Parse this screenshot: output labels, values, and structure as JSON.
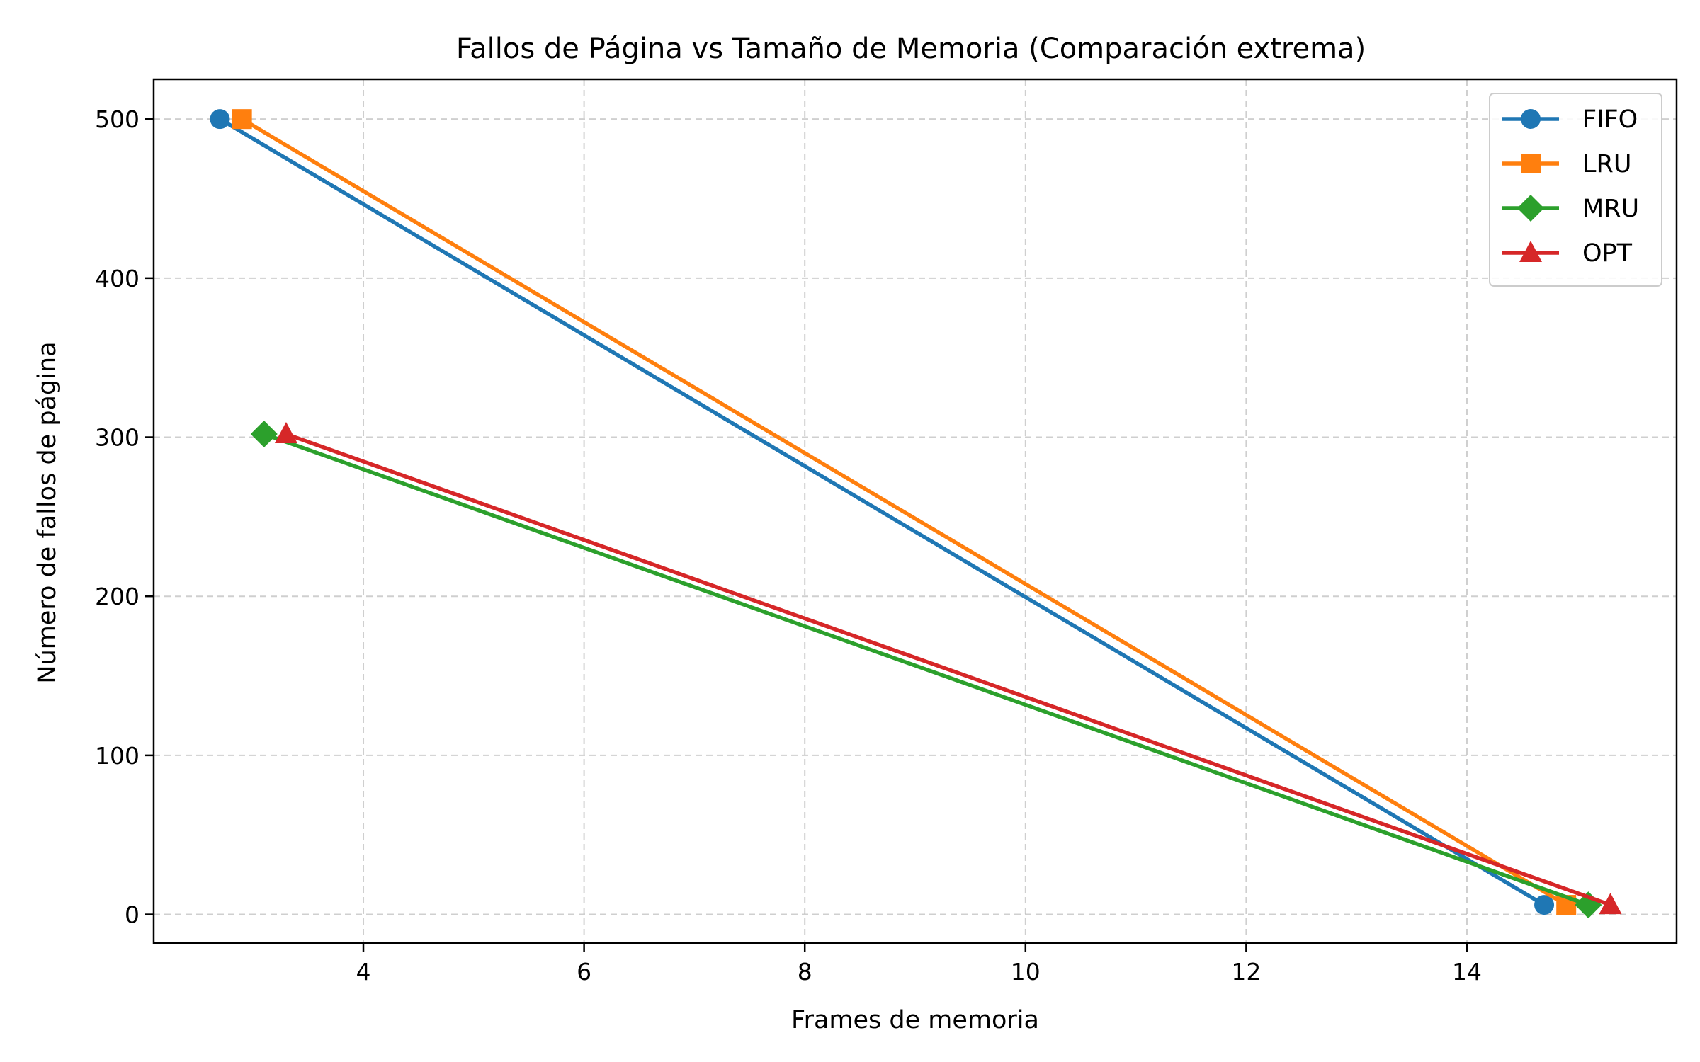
{
  "chart_data": {
    "type": "line",
    "title": "Fallos de Página vs Tamaño de Memoria (Comparación extrema)",
    "xlabel": "Frames de memoria",
    "ylabel": "Número de fallos de página",
    "xlim": [
      2.1,
      15.9
    ],
    "ylim": [
      -18,
      525
    ],
    "xticks": [
      4,
      6,
      8,
      10,
      12,
      14
    ],
    "yticks": [
      0,
      100,
      200,
      300,
      400,
      500
    ],
    "grid": true,
    "legend_position": "top-right",
    "series": [
      {
        "name": "FIFO",
        "color": "#1f77b4",
        "marker": "circle",
        "x": [
          2.7,
          14.7
        ],
        "y": [
          500,
          6
        ]
      },
      {
        "name": "LRU",
        "color": "#ff7f0e",
        "marker": "square",
        "x": [
          2.9,
          14.9
        ],
        "y": [
          500,
          6
        ]
      },
      {
        "name": "MRU",
        "color": "#2ca02c",
        "marker": "diamond",
        "x": [
          3.1,
          15.1
        ],
        "y": [
          302,
          6
        ]
      },
      {
        "name": "OPT",
        "color": "#d62728",
        "marker": "triangle",
        "x": [
          3.3,
          15.3
        ],
        "y": [
          302,
          6
        ]
      }
    ]
  }
}
